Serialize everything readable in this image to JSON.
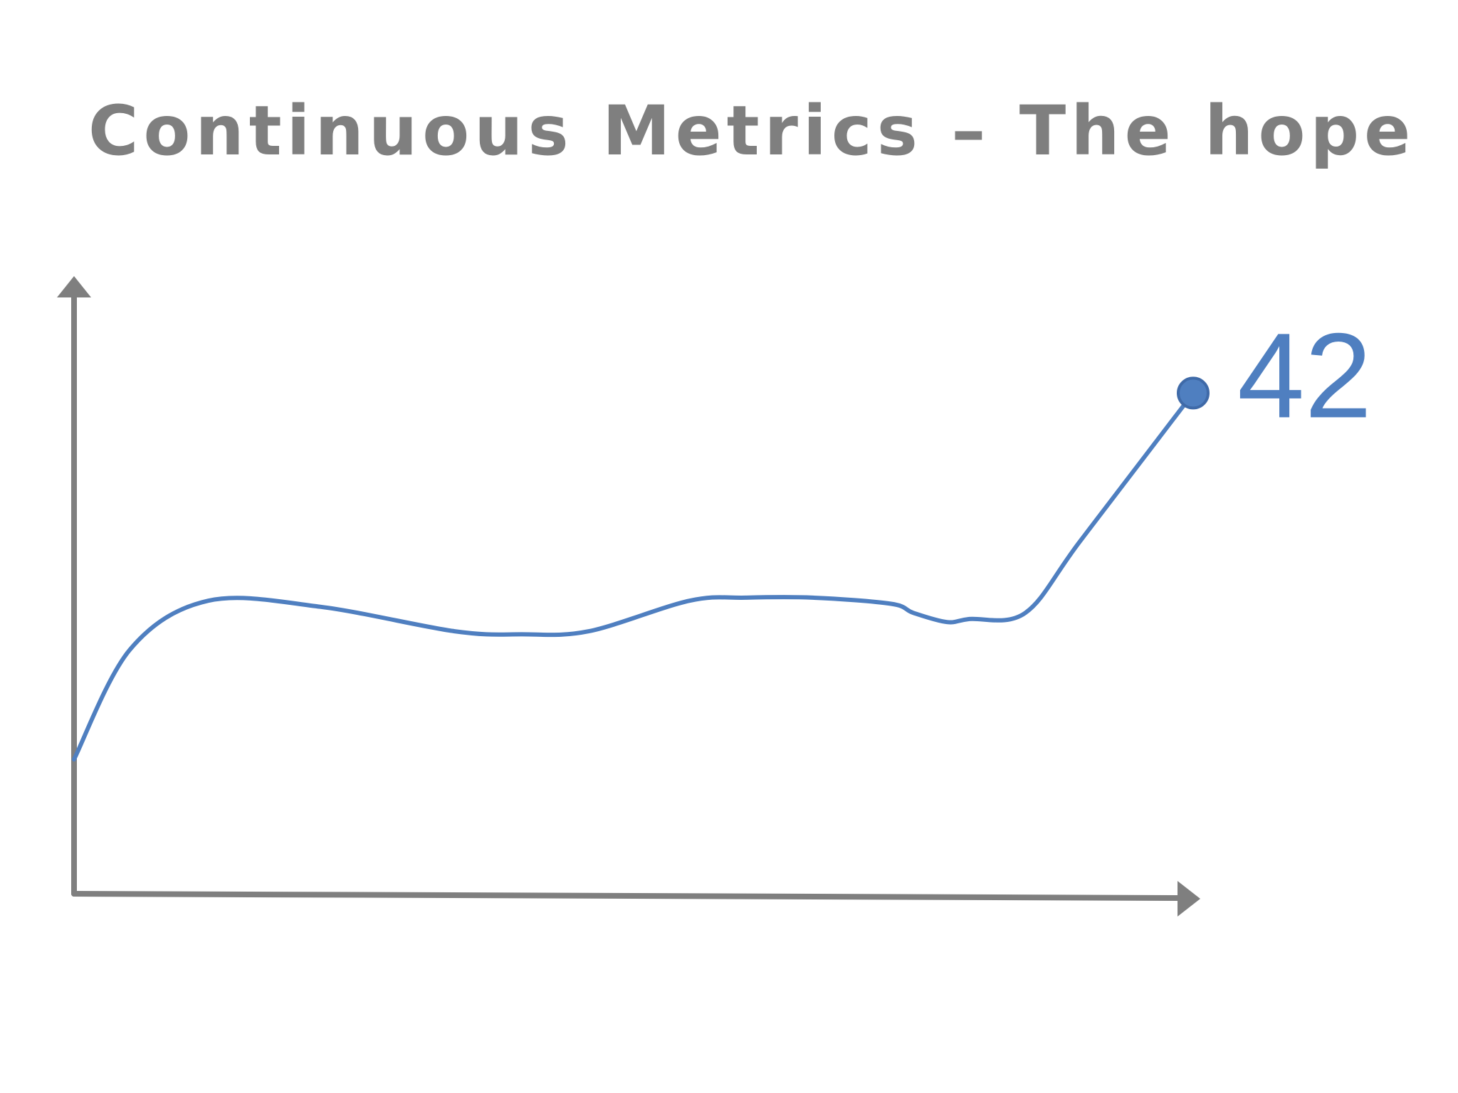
{
  "slide": {
    "title": "Continuous Metrics – The hope"
  },
  "colors": {
    "axis": "#7f7f7f",
    "series": "#4f7fc0",
    "title": "#7f7f7f"
  },
  "chart_data": {
    "type": "line",
    "title": "",
    "xlabel": "",
    "ylabel": "",
    "grid": false,
    "legend": "none",
    "xlim": [
      0,
      100
    ],
    "ylim": [
      0,
      100
    ],
    "series": [
      {
        "x": [
          0,
          5,
          12,
          22,
          34,
          40,
          46,
          55,
          60,
          66,
          73,
          75,
          78,
          80,
          85,
          90,
          100
        ],
        "y": [
          22,
          40,
          48,
          47,
          43,
          42.5,
          43,
          48,
          48.5,
          48.5,
          47.5,
          46,
          44.5,
          45,
          46,
          58,
          82
        ],
        "end_label": "42"
      }
    ]
  }
}
